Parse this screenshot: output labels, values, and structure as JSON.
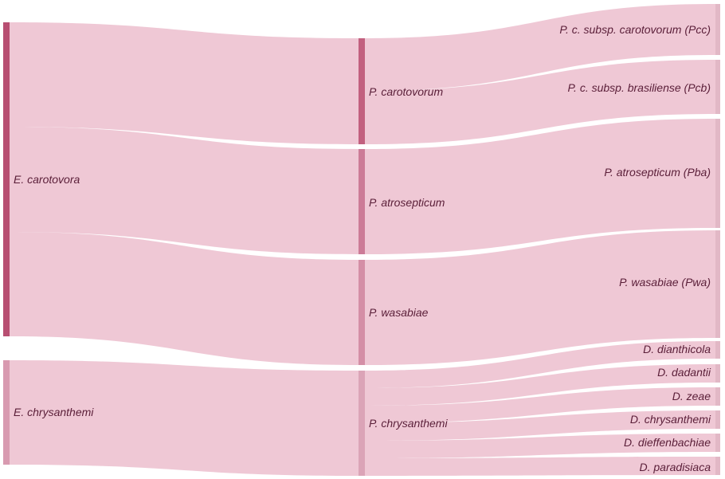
{
  "diagram": {
    "type": "sankey",
    "colors": {
      "link": "#efc8d5",
      "node_ecarotovora": "#b84f72",
      "node_echrysanthemi": "#d89ab0",
      "node_pcarotovorum": "#c2607f",
      "node_patrosepticum": "#cc7b97",
      "node_pwasabiae": "#d48ea6",
      "node_pchrysanthemi": "#dba4b7",
      "node_right": "#e2b8c6"
    },
    "columns": {
      "left": [
        {
          "id": "ecar",
          "label": "E. carotovora"
        },
        {
          "id": "echr",
          "label": "E. chrysanthemi"
        }
      ],
      "middle": [
        {
          "id": "pcar",
          "label": "P. carotovorum"
        },
        {
          "id": "patr",
          "label": "P. atrosepticum"
        },
        {
          "id": "pwas",
          "label": "P. wasabiae"
        },
        {
          "id": "pchr",
          "label": "P. chrysanthemi"
        }
      ],
      "right": [
        {
          "id": "pcc",
          "label": "P. c. subsp. carotovorum (Pcc)"
        },
        {
          "id": "pcb",
          "label": "P. c. subsp. brasiliense (Pcb)"
        },
        {
          "id": "pba",
          "label": "P. atrosepticum (Pba)"
        },
        {
          "id": "pwa",
          "label": "P. wasabiae (Pwa)"
        },
        {
          "id": "ddia",
          "label": "D. dianthicola"
        },
        {
          "id": "ddad",
          "label": "D. dadantii"
        },
        {
          "id": "dzea",
          "label": "D. zeae"
        },
        {
          "id": "dchr",
          "label": "D. chrysanthemi"
        },
        {
          "id": "ddie",
          "label": "D. dieffenbachiae"
        },
        {
          "id": "dpar",
          "label": "D. paradisiaca"
        }
      ]
    },
    "links": [
      {
        "source": "ecar",
        "target": "pcar",
        "value": 6
      },
      {
        "source": "ecar",
        "target": "patr",
        "value": 6
      },
      {
        "source": "ecar",
        "target": "pwas",
        "value": 6
      },
      {
        "source": "echr",
        "target": "pchr",
        "value": 6
      },
      {
        "source": "pcar",
        "target": "pcc",
        "value": 3
      },
      {
        "source": "pcar",
        "target": "pcb",
        "value": 3
      },
      {
        "source": "patr",
        "target": "pba",
        "value": 6
      },
      {
        "source": "pwas",
        "target": "pwa",
        "value": 6
      },
      {
        "source": "pchr",
        "target": "ddia",
        "value": 1
      },
      {
        "source": "pchr",
        "target": "ddad",
        "value": 1
      },
      {
        "source": "pchr",
        "target": "dzea",
        "value": 1
      },
      {
        "source": "pchr",
        "target": "dchr",
        "value": 1
      },
      {
        "source": "pchr",
        "target": "ddie",
        "value": 1
      },
      {
        "source": "pchr",
        "target": "dpar",
        "value": 1
      }
    ]
  }
}
